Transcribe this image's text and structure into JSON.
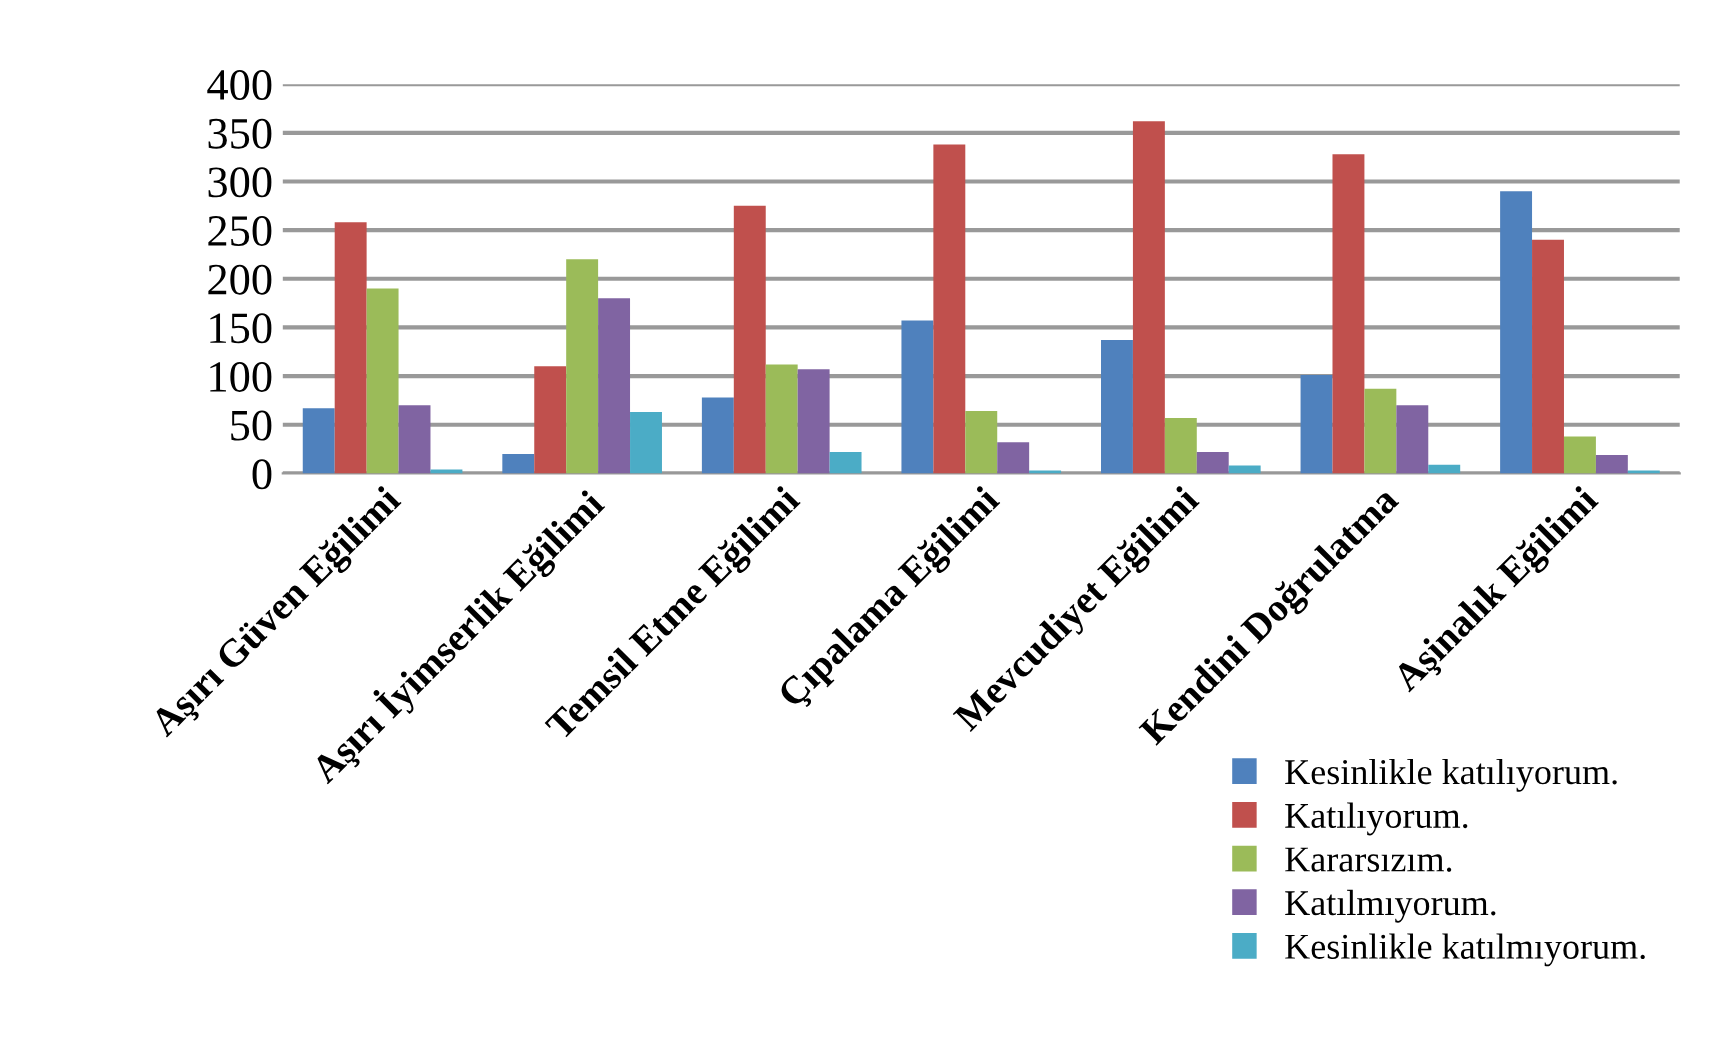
{
  "chart_data": {
    "type": "bar",
    "categories": [
      "Aşırı Güven Eğilimi",
      "Aşırı İyimserlik Eğilimi",
      "Temsil Etme Eğilimi",
      "Çıpalama Eğilimi",
      "Mevcudiyet Eğilimi",
      "Kendini Doğrulatma",
      "Aşinalık Eğilimi"
    ],
    "series": [
      {
        "name": "Kesinlikle katılıyorum.",
        "color": "#4f81bd",
        "values": [
          67,
          20,
          78,
          157,
          137,
          101,
          290
        ]
      },
      {
        "name": "Katılıyorum.",
        "color": "#c0504d",
        "values": [
          258,
          110,
          275,
          338,
          362,
          328,
          240
        ]
      },
      {
        "name": "Kararsızım.",
        "color": "#9bbb59",
        "values": [
          190,
          220,
          112,
          64,
          57,
          87,
          38
        ]
      },
      {
        "name": "Katılmıyorum.",
        "color": "#8064a2",
        "values": [
          70,
          180,
          107,
          32,
          22,
          70,
          19
        ]
      },
      {
        "name": "Kesinlikle katılmıyorum.",
        "color": "#4bacc6",
        "values": [
          4,
          63,
          22,
          3,
          8,
          9,
          3
        ]
      }
    ],
    "ylim": [
      0,
      400
    ],
    "yticks": [
      0,
      50,
      100,
      150,
      200,
      250,
      300,
      350,
      400
    ],
    "grid": "y",
    "legend": "bottom right"
  }
}
